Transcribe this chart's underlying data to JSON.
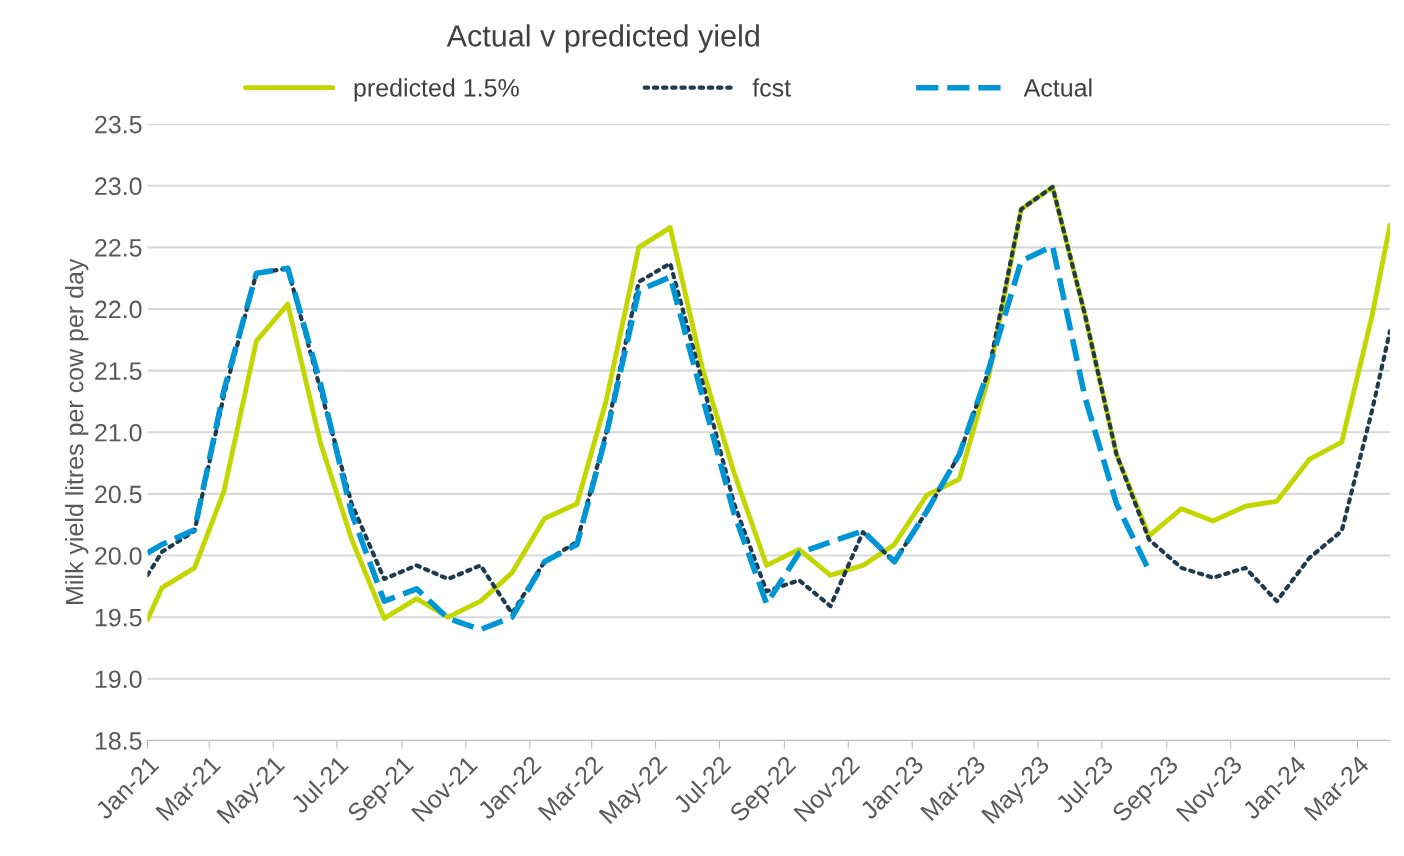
{
  "chart_data": {
    "type": "line",
    "title": "Actual v predicted yield",
    "ylabel": "Milk yield litres per cow per day",
    "x": [
      "2021-01-01",
      "2021-01-15",
      "2021-02-15",
      "2021-03-15",
      "2021-04-15",
      "2021-05-15",
      "2021-06-15",
      "2021-07-15",
      "2021-08-15",
      "2021-09-15",
      "2021-10-15",
      "2021-11-15",
      "2021-12-15",
      "2022-01-15",
      "2022-02-15",
      "2022-03-15",
      "2022-04-15",
      "2022-05-15",
      "2022-06-15",
      "2022-07-15",
      "2022-08-15",
      "2022-09-15",
      "2022-10-15",
      "2022-11-15",
      "2022-12-15",
      "2023-01-15",
      "2023-02-15",
      "2023-03-15",
      "2023-04-15",
      "2023-05-15",
      "2023-06-15",
      "2023-07-15",
      "2023-08-15",
      "2023-09-15",
      "2023-10-15",
      "2023-11-15",
      "2023-12-15",
      "2024-01-15",
      "2024-02-15",
      "2024-03-15",
      "2024-04-01"
    ],
    "series": [
      {
        "name": "predicted 1.5%",
        "color": "#c4d600",
        "line_style": "solid",
        "values": [
          19.48,
          19.74,
          19.9,
          20.52,
          21.74,
          22.04,
          20.92,
          20.13,
          19.49,
          19.65,
          19.5,
          19.63,
          19.86,
          20.3,
          20.42,
          21.26,
          22.5,
          22.66,
          21.51,
          20.67,
          19.92,
          20.05,
          19.84,
          19.92,
          20.09,
          20.49,
          20.62,
          21.45,
          22.81,
          22.99,
          21.95,
          20.82,
          20.16,
          20.38,
          20.28,
          20.4,
          20.44,
          20.78,
          20.92,
          21.95,
          22.68
        ]
      },
      {
        "name": "fcst",
        "color": "#1f3b4d",
        "line_style": "dotted",
        "values": [
          19.84,
          20.03,
          20.2,
          21.3,
          22.29,
          22.33,
          21.35,
          20.42,
          19.81,
          19.92,
          19.81,
          19.92,
          19.53,
          19.95,
          20.11,
          21.0,
          22.22,
          22.37,
          21.4,
          20.42,
          19.71,
          19.8,
          19.59,
          20.19,
          19.95,
          20.36,
          20.82,
          21.5,
          22.81,
          22.99,
          21.95,
          20.82,
          20.13,
          19.9,
          19.82,
          19.9,
          19.63,
          19.98,
          20.2,
          21.18,
          21.82
        ]
      },
      {
        "name": "Actual",
        "color": "#0096d6",
        "line_style": "dashed",
        "values": [
          20.02,
          20.09,
          20.21,
          21.34,
          22.29,
          22.33,
          21.4,
          20.34,
          19.63,
          19.73,
          19.49,
          19.4,
          19.5,
          19.95,
          20.09,
          20.98,
          22.15,
          22.26,
          21.28,
          20.34,
          19.61,
          20.02,
          20.11,
          20.2,
          19.95,
          20.36,
          20.82,
          21.51,
          22.39,
          22.51,
          21.28,
          20.42,
          19.88,
          null,
          null,
          null,
          null,
          null,
          null,
          null,
          null
        ]
      }
    ],
    "xlim": [
      "2021-01-01",
      "2024-04-01"
    ],
    "xticks": [
      {
        "value": "2021-01-01",
        "label": "Jan-21"
      },
      {
        "value": "2021-03-01",
        "label": "Mar-21"
      },
      {
        "value": "2021-05-01",
        "label": "May-21"
      },
      {
        "value": "2021-07-01",
        "label": "Jul-21"
      },
      {
        "value": "2021-09-01",
        "label": "Sep-21"
      },
      {
        "value": "2021-11-01",
        "label": "Nov-21"
      },
      {
        "value": "2022-01-01",
        "label": "Jan-22"
      },
      {
        "value": "2022-03-01",
        "label": "Mar-22"
      },
      {
        "value": "2022-05-01",
        "label": "May-22"
      },
      {
        "value": "2022-07-01",
        "label": "Jul-22"
      },
      {
        "value": "2022-09-01",
        "label": "Sep-22"
      },
      {
        "value": "2022-11-01",
        "label": "Nov-22"
      },
      {
        "value": "2023-01-01",
        "label": "Jan-23"
      },
      {
        "value": "2023-03-01",
        "label": "Mar-23"
      },
      {
        "value": "2023-05-01",
        "label": "May-23"
      },
      {
        "value": "2023-07-01",
        "label": "Jul-23"
      },
      {
        "value": "2023-09-01",
        "label": "Sep-23"
      },
      {
        "value": "2023-11-01",
        "label": "Nov-23"
      },
      {
        "value": "2024-01-01",
        "label": "Jan-24"
      },
      {
        "value": "2024-03-01",
        "label": "Mar-24"
      }
    ],
    "ylim": [
      18.5,
      23.5
    ],
    "yticks": [
      18.5,
      {
        "value": 19,
        "label": "19.0"
      },
      19.5,
      {
        "value": 20,
        "label": "20.0"
      },
      20.5,
      {
        "value": 21,
        "label": "21.0"
      },
      21.5,
      {
        "value": 22,
        "label": "22.0"
      },
      22.5,
      {
        "value": 23,
        "label": "23.0"
      },
      23.5
    ],
    "grid": "y",
    "legend": "top",
    "marker": "none"
  }
}
